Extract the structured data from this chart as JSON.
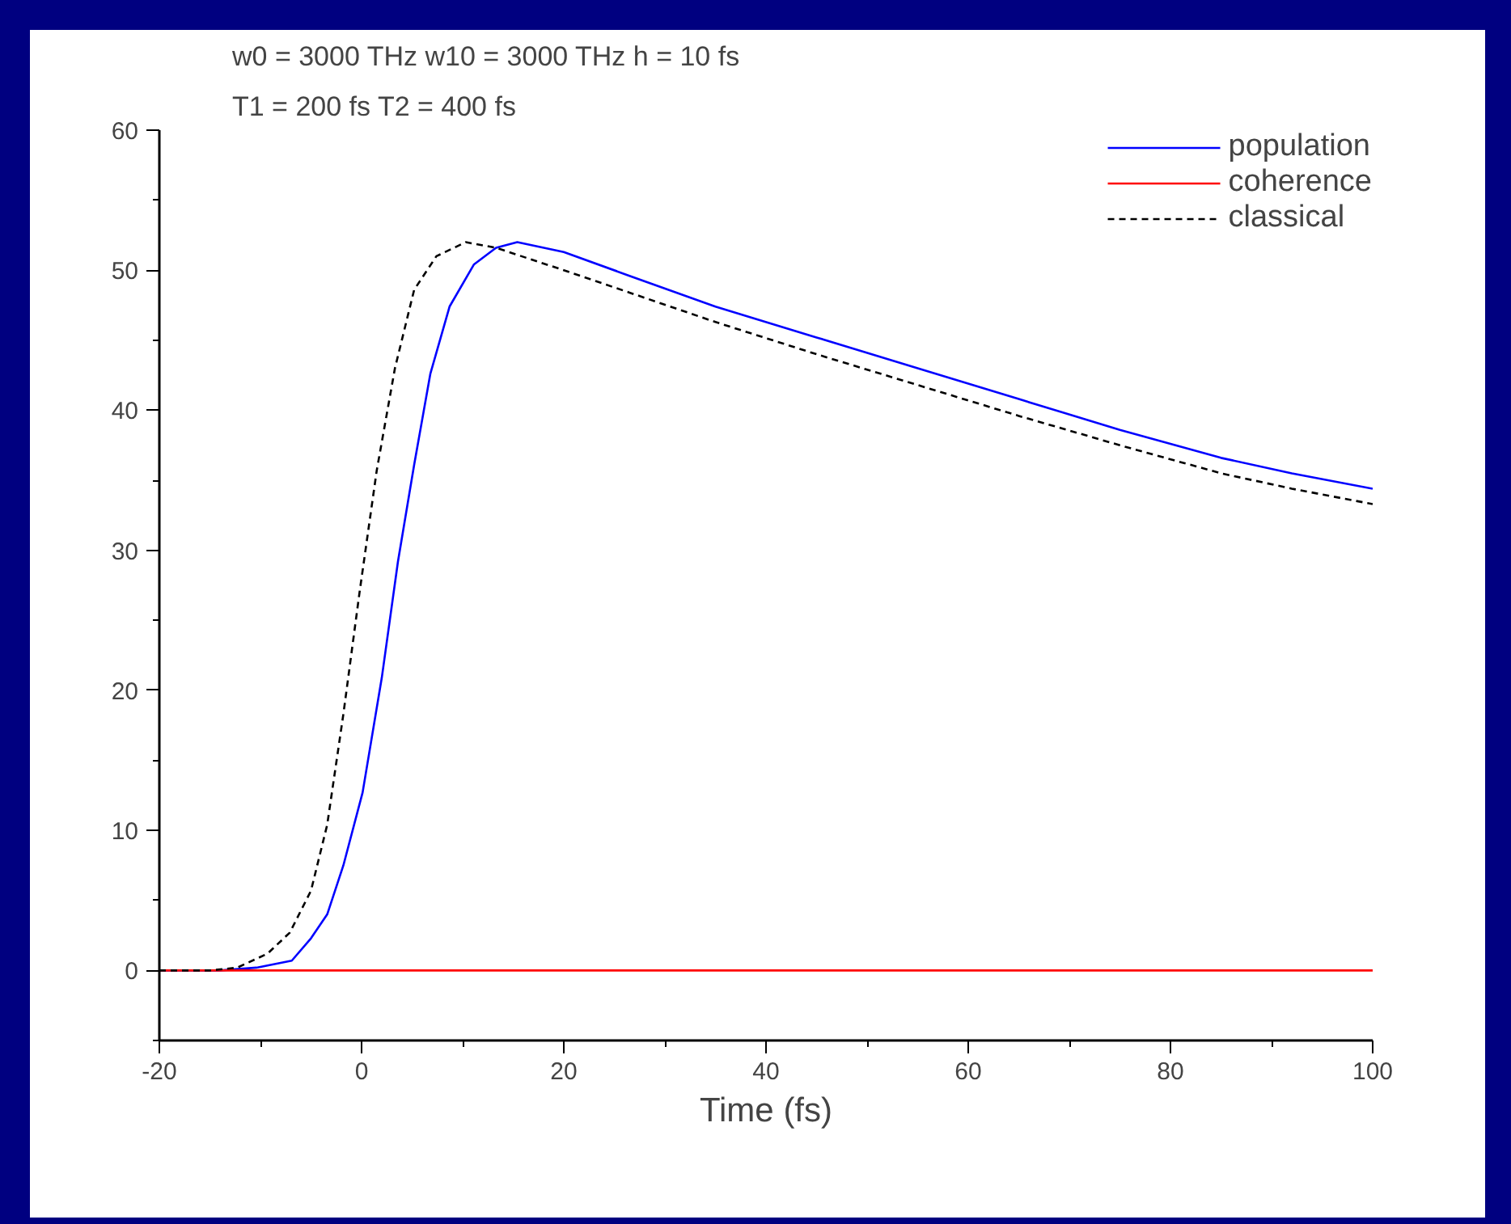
{
  "chart_data": {
    "type": "line",
    "xlabel": "Time (fs)",
    "annotations": [
      "w0 = 3000 THz  w10 = 3000 THz  h = 10 fs",
      "T1 = 200 fs  T2 = 400 fs"
    ],
    "xlim": [
      -20,
      100
    ],
    "ylim": [
      -5,
      60
    ],
    "xticks": [
      -20,
      0,
      20,
      40,
      60,
      80,
      100
    ],
    "yticks": [
      0,
      10,
      20,
      30,
      40,
      50,
      60
    ],
    "grid": false,
    "legend": "top right",
    "series": [
      {
        "name": "population",
        "color": "#0000ff",
        "line_style": "solid",
        "x": [
          -20,
          -14,
          -10.4,
          -6.9,
          -5.0,
          -3.4,
          -1.8,
          0.1,
          2.0,
          3.6,
          5.2,
          6.8,
          8.7,
          11.1,
          13.3,
          15.4,
          20,
          26.5,
          35,
          45,
          55,
          65,
          75,
          85,
          92,
          100
        ],
        "values": [
          0,
          0,
          0.2,
          0.7,
          2.3,
          4.0,
          7.5,
          12.7,
          20.9,
          29.2,
          36.1,
          42.6,
          47.4,
          50.4,
          51.6,
          52.0,
          51.3,
          49.6,
          47.4,
          45.2,
          43.0,
          40.8,
          38.6,
          36.6,
          35.5,
          34.4
        ]
      },
      {
        "name": "coherence",
        "color": "#ff0000",
        "line_style": "solid",
        "x": [
          -20,
          0,
          20,
          40,
          60,
          80,
          100
        ],
        "values": [
          0,
          0,
          0,
          0,
          0,
          0,
          0
        ]
      },
      {
        "name": "classical",
        "color": "#000000",
        "line_style": "dashed",
        "x": [
          -20,
          -15,
          -12.3,
          -9.3,
          -7.1,
          -5.0,
          -3.4,
          -1.8,
          -0.2,
          1.5,
          3.3,
          5.2,
          7.4,
          10.3,
          13.3,
          20,
          26.5,
          35,
          45,
          55,
          65,
          75,
          85,
          92,
          100
        ],
        "values": [
          0,
          0,
          0.2,
          1.2,
          2.7,
          5.7,
          10.4,
          18.3,
          27.0,
          35.7,
          43.0,
          48.6,
          51.0,
          52.0,
          51.6,
          50.0,
          48.4,
          46.3,
          44.0,
          41.8,
          39.6,
          37.5,
          35.5,
          34.4,
          33.3
        ]
      }
    ]
  }
}
